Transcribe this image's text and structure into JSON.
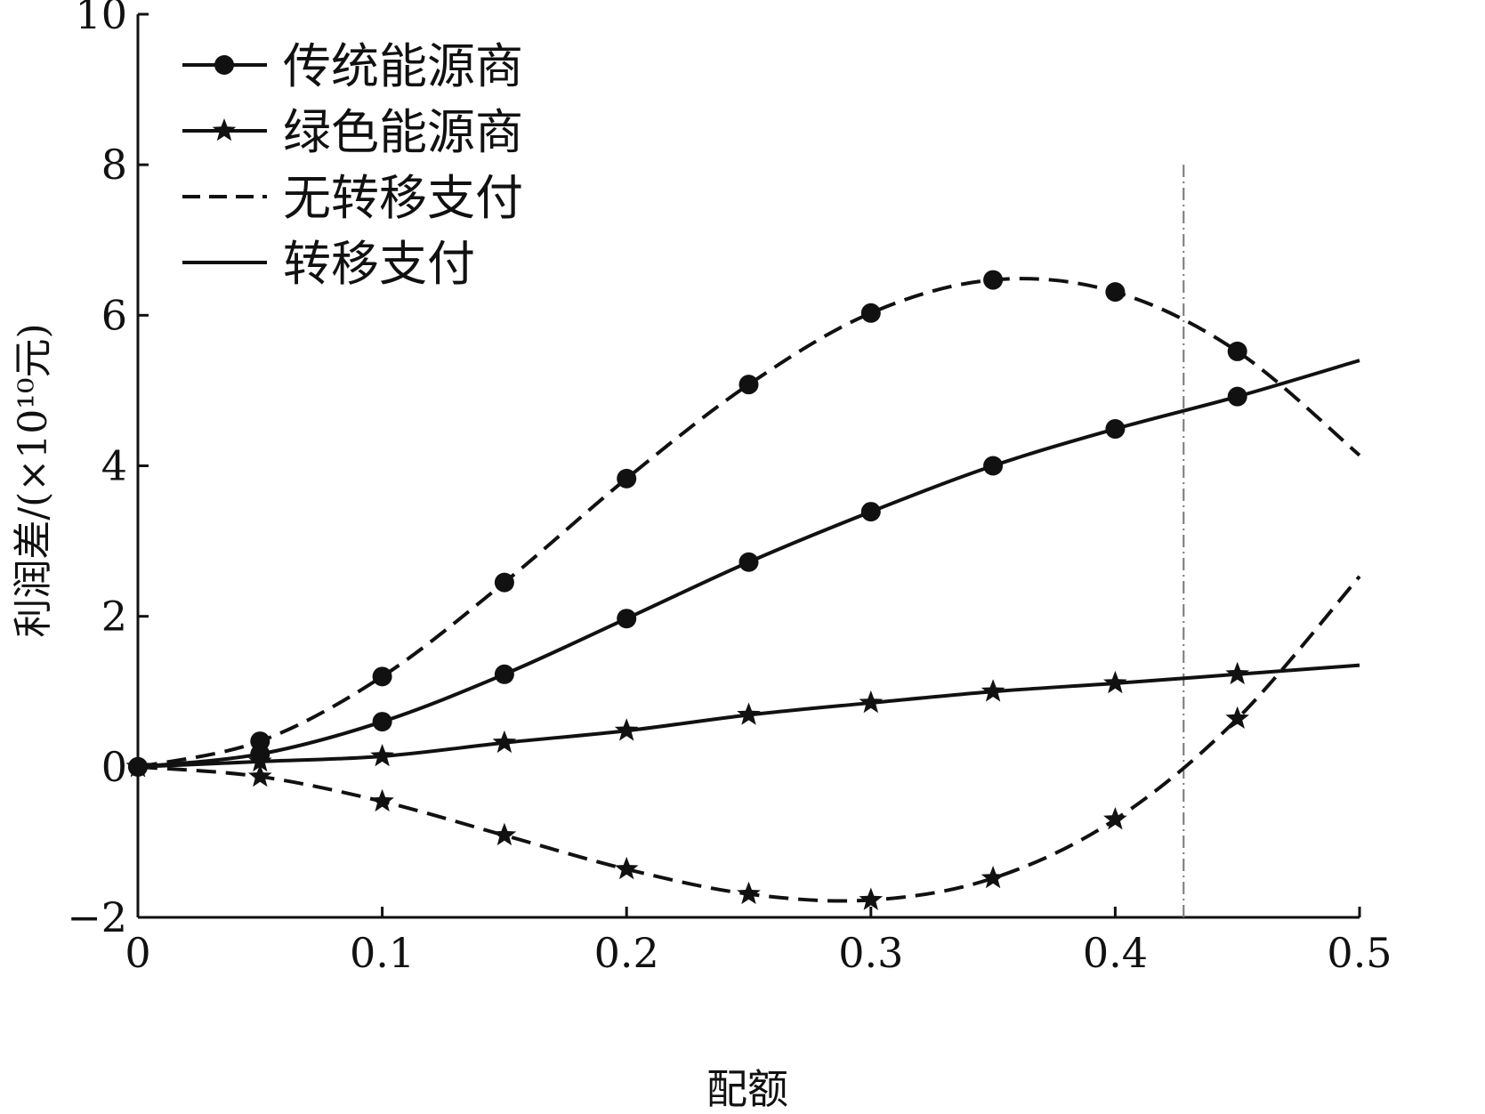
{
  "chart_data": {
    "type": "line",
    "title": "",
    "xlabel": "配额",
    "ylabel": "利润差/(×10¹⁰元)",
    "xlim": [
      0,
      0.5
    ],
    "ylim": [
      -2,
      10
    ],
    "x_ticks": [
      "0",
      "0.1",
      "0.2",
      "0.3",
      "0.4",
      "0.5"
    ],
    "y_ticks": [
      "−2",
      "0",
      "2",
      "4",
      "6",
      "8",
      "10"
    ],
    "x_tick_values": [
      0,
      0.1,
      0.2,
      0.3,
      0.4,
      0.5
    ],
    "y_tick_values": [
      -2,
      0,
      2,
      4,
      6,
      8,
      10
    ],
    "x": [
      0,
      0.05,
      0.1,
      0.15,
      0.2,
      0.25,
      0.3,
      0.35,
      0.4,
      0.45,
      0.5
    ],
    "series": [
      {
        "name": "传统能源商 无转移支付",
        "marker": "circle",
        "style": "dashed",
        "values": [
          0,
          0.34,
          1.2,
          2.45,
          3.83,
          5.08,
          6.03,
          6.47,
          6.31,
          5.52,
          4.14
        ]
      },
      {
        "name": "传统能源商 转移支付",
        "marker": "circle",
        "style": "solid",
        "values": [
          0,
          0.17,
          0.6,
          1.23,
          1.97,
          2.72,
          3.39,
          4.0,
          4.49,
          4.92,
          5.4
        ]
      },
      {
        "name": "绿色能源商 转移支付",
        "marker": "star",
        "style": "solid",
        "values": [
          0,
          0.07,
          0.14,
          0.32,
          0.48,
          0.69,
          0.85,
          1.0,
          1.11,
          1.23,
          1.35
        ]
      },
      {
        "name": "绿色能源商 无转移支付",
        "marker": "star",
        "style": "dashed",
        "values": [
          0,
          -0.13,
          -0.46,
          -0.91,
          -1.36,
          -1.69,
          -1.77,
          -1.48,
          -0.7,
          0.64,
          2.53
        ]
      }
    ],
    "reference_line": {
      "x": 0.428,
      "style": "dash-dot",
      "y_from": -2,
      "y_to": 8
    },
    "legend": {
      "placement": "top-left",
      "entries": [
        {
          "label": "传统能源商",
          "symbol": "circle-line"
        },
        {
          "label": "绿色能源商",
          "symbol": "star-line"
        },
        {
          "label": "无转移支付",
          "symbol": "dashed-line"
        },
        {
          "label": "转移支付",
          "symbol": "solid-line"
        }
      ]
    },
    "grid": false
  }
}
